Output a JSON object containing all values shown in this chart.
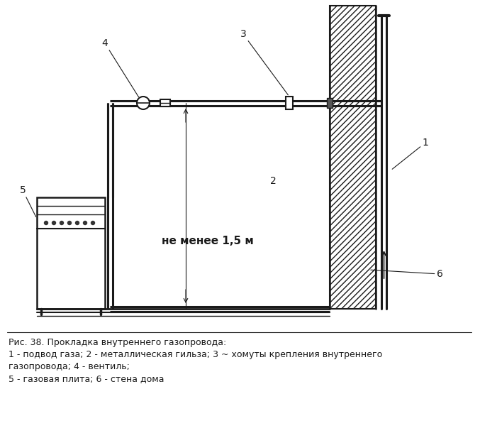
{
  "caption_line1": "Рис. 38. Прокладка внутреннего газопровода:",
  "caption_line2": "1 - подвод газа; 2 - металлическая гильза; 3 ~ хомуты крепления внутреннего",
  "caption_line3": "газопровода; 4 - вентиль;",
  "caption_line4": "5 - газовая плита; 6 - стена дома",
  "bg_color": "#ffffff",
  "line_color": "#1a1a1a",
  "label_4": "4",
  "label_3": "3",
  "label_2": "2",
  "label_1": "1",
  "label_5": "5",
  "label_6": "6",
  "text_distance": "не менее 1,5 м",
  "font_size_caption": 9.0,
  "font_size_labels": 10
}
